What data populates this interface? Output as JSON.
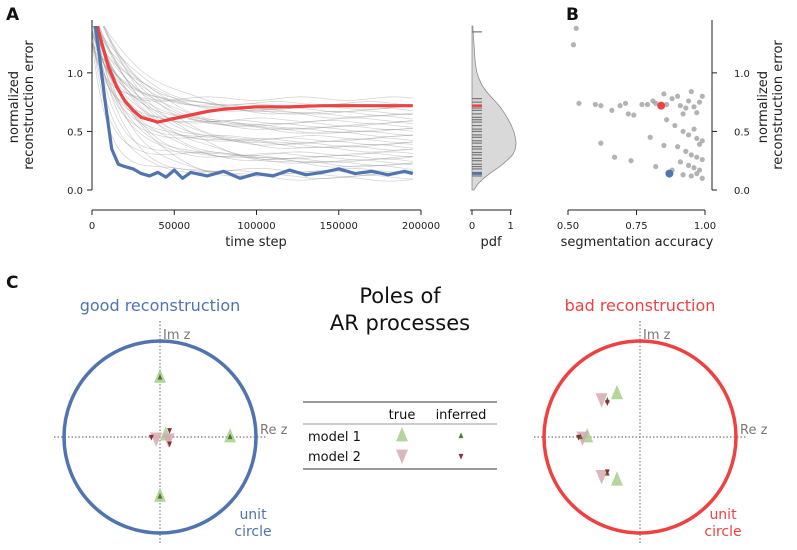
{
  "panels": {
    "a": "A",
    "b": "B",
    "c": "C"
  },
  "colors": {
    "good": "#4f74b0",
    "bad": "#ef4141",
    "gray": "#9a9a9a",
    "model1": "#a6cf8c",
    "model1_inferred": "#4f7a2a",
    "model2": "#d7a8b2",
    "model2_inferred": "#8a2e3a"
  },
  "chart_data": [
    {
      "type": "line",
      "panel": "A",
      "xlabel": "time step",
      "ylabel": "normalized\nreconstruction error",
      "xlim": [
        0,
        200000
      ],
      "ylim": [
        0,
        1.4
      ],
      "xticks": [
        "0",
        "50000",
        "100000",
        "150000",
        "200000"
      ],
      "yticks": [
        "0.0",
        "0.5",
        "1.0"
      ],
      "series": [
        {
          "color": "#ef4141",
          "x": [
            0,
            5000,
            10000,
            15000,
            20000,
            25000,
            30000,
            35000,
            40000,
            50000,
            60000,
            70000,
            80000,
            90000,
            100000,
            120000,
            140000,
            160000,
            180000,
            195000
          ],
          "y": [
            1.6,
            1.3,
            1.05,
            0.88,
            0.76,
            0.68,
            0.62,
            0.6,
            0.58,
            0.61,
            0.64,
            0.67,
            0.69,
            0.7,
            0.71,
            0.71,
            0.72,
            0.72,
            0.72,
            0.72
          ]
        },
        {
          "color": "#4f74b0",
          "x": [
            0,
            4000,
            8000,
            12000,
            16000,
            20000,
            25000,
            30000,
            35000,
            40000,
            45000,
            50000,
            55000,
            60000,
            70000,
            80000,
            90000,
            100000,
            110000,
            120000,
            130000,
            140000,
            150000,
            160000,
            170000,
            180000,
            190000,
            195000
          ],
          "y": [
            1.6,
            1.2,
            0.75,
            0.35,
            0.22,
            0.2,
            0.18,
            0.14,
            0.12,
            0.15,
            0.11,
            0.17,
            0.1,
            0.15,
            0.12,
            0.16,
            0.1,
            0.14,
            0.12,
            0.17,
            0.13,
            0.15,
            0.18,
            0.14,
            0.16,
            0.13,
            0.16,
            0.14
          ]
        }
      ],
      "background_series": {
        "color": "#9a9a9a",
        "final_values": [
          0.78,
          0.74,
          0.72,
          0.7,
          0.68,
          0.66,
          0.65,
          0.63,
          0.61,
          0.6,
          0.58,
          0.56,
          0.55,
          0.53,
          0.51,
          0.5,
          0.48,
          0.46,
          0.45,
          0.43,
          0.42,
          0.4,
          0.38,
          0.37,
          0.35,
          0.33,
          0.31,
          0.3,
          0.28,
          0.27,
          0.25,
          0.24,
          0.22,
          0.2,
          0.18,
          0.17,
          0.15,
          0.13,
          0.11,
          0.09
        ]
      }
    },
    {
      "type": "area",
      "panel": "A",
      "xlabel": "pdf",
      "xticks": [
        "0",
        "1"
      ],
      "xlim": [
        0,
        1.5
      ],
      "ylim": [
        0,
        1.4
      ],
      "density_y": [
        0.0,
        0.05,
        0.1,
        0.15,
        0.2,
        0.25,
        0.3,
        0.35,
        0.4,
        0.45,
        0.5,
        0.55,
        0.6,
        0.65,
        0.7,
        0.75,
        0.8,
        0.85,
        0.9,
        0.95,
        1.0,
        1.05,
        1.1,
        1.15,
        1.2,
        1.3,
        1.4
      ],
      "density_x": [
        0.05,
        0.15,
        0.3,
        0.5,
        0.72,
        0.9,
        1.05,
        1.12,
        1.14,
        1.12,
        1.08,
        1.02,
        0.94,
        0.85,
        0.75,
        0.62,
        0.48,
        0.35,
        0.25,
        0.18,
        0.13,
        0.1,
        0.08,
        0.07,
        0.06,
        0.04,
        0.02
      ],
      "rug": [
        0.12,
        0.15,
        0.18,
        0.2,
        0.22,
        0.25,
        0.27,
        0.3,
        0.32,
        0.35,
        0.37,
        0.4,
        0.42,
        0.45,
        0.47,
        0.5,
        0.52,
        0.55,
        0.58,
        0.6,
        0.62,
        0.65,
        0.68,
        0.7,
        0.72,
        0.75,
        0.78,
        1.35
      ],
      "rug_good": 0.14,
      "rug_bad": 0.72
    },
    {
      "type": "scatter",
      "panel": "B",
      "xlabel": "segmentation accuracy",
      "ylabel": "normalized\nreconstruction error",
      "xlim": [
        0.5,
        1.0
      ],
      "ylim": [
        0,
        1.4
      ],
      "xticks": [
        "0.50",
        "0.75",
        "1.00"
      ],
      "yticks": [
        "0.0",
        "0.5",
        "1.0"
      ],
      "points": [
        [
          0.52,
          1.24
        ],
        [
          0.53,
          1.38
        ],
        [
          0.54,
          0.74
        ],
        [
          0.6,
          0.73
        ],
        [
          0.62,
          0.72
        ],
        [
          0.66,
          0.68
        ],
        [
          0.69,
          0.72
        ],
        [
          0.71,
          0.74
        ],
        [
          0.72,
          0.65
        ],
        [
          0.74,
          0.64
        ],
        [
          0.77,
          0.73
        ],
        [
          0.79,
          0.73
        ],
        [
          0.81,
          0.76
        ],
        [
          0.82,
          0.74
        ],
        [
          0.85,
          0.82
        ],
        [
          0.86,
          0.73
        ],
        [
          0.88,
          0.78
        ],
        [
          0.9,
          0.8
        ],
        [
          0.91,
          0.72
        ],
        [
          0.92,
          0.65
        ],
        [
          0.93,
          0.7
        ],
        [
          0.94,
          0.76
        ],
        [
          0.95,
          0.84
        ],
        [
          0.96,
          0.71
        ],
        [
          0.97,
          0.66
        ],
        [
          0.98,
          0.75
        ],
        [
          0.99,
          0.8
        ],
        [
          0.86,
          0.6
        ],
        [
          0.89,
          0.55
        ],
        [
          0.92,
          0.5
        ],
        [
          0.94,
          0.47
        ],
        [
          0.96,
          0.52
        ],
        [
          0.97,
          0.44
        ],
        [
          0.98,
          0.39
        ],
        [
          0.99,
          0.42
        ],
        [
          0.9,
          0.37
        ],
        [
          0.93,
          0.33
        ],
        [
          0.95,
          0.3
        ],
        [
          0.97,
          0.28
        ],
        [
          0.99,
          0.26
        ],
        [
          0.91,
          0.24
        ],
        [
          0.94,
          0.21
        ],
        [
          0.96,
          0.19
        ],
        [
          0.98,
          0.17
        ],
        [
          0.62,
          0.4
        ],
        [
          0.67,
          0.28
        ],
        [
          0.73,
          0.25
        ],
        [
          0.82,
          0.2
        ],
        [
          0.88,
          0.17
        ],
        [
          0.92,
          0.13
        ],
        [
          0.95,
          0.12
        ],
        [
          0.97,
          0.14
        ],
        [
          0.99,
          0.1
        ],
        [
          0.8,
          0.45
        ],
        [
          0.85,
          0.38
        ]
      ],
      "highlight_bad": [
        0.84,
        0.72
      ],
      "highlight_good": [
        0.87,
        0.14
      ]
    },
    {
      "type": "scatter",
      "panel": "C",
      "title": "good reconstruction",
      "xlabel": "Re z",
      "ylabel": "Im z",
      "circle_label": [
        "unit",
        "circle"
      ],
      "xlim": [
        -1.1,
        1.1
      ],
      "ylim": [
        -1.1,
        1.1
      ],
      "true_model1": [
        [
          0.0,
          0.62
        ],
        [
          0.73,
          0.0
        ],
        [
          0.0,
          -0.62
        ],
        [
          0.06,
          0.02
        ]
      ],
      "true_model2": [
        [
          -0.04,
          -0.01
        ],
        [
          0.09,
          -0.02
        ]
      ],
      "inferred_model1": [
        [
          0.0,
          0.62
        ],
        [
          0.73,
          0.0
        ],
        [
          0.0,
          -0.62
        ]
      ],
      "inferred_model2": [
        [
          -0.09,
          0.0
        ],
        [
          0.1,
          0.07
        ],
        [
          0.1,
          -0.07
        ]
      ]
    },
    {
      "type": "scatter",
      "panel": "C",
      "title": "bad reconstruction",
      "xlabel": "Re z",
      "ylabel": "Im z",
      "circle_label": [
        "unit",
        "circle"
      ],
      "xlim": [
        -1.1,
        1.1
      ],
      "ylim": [
        -1.1,
        1.1
      ],
      "true_model1": [
        [
          -0.24,
          0.45
        ],
        [
          -0.24,
          -0.45
        ],
        [
          -0.55,
          0.0
        ]
      ],
      "true_model2": [
        [
          -0.4,
          0.4
        ],
        [
          -0.4,
          -0.4
        ],
        [
          -0.6,
          0.0
        ]
      ],
      "inferred_model1": [
        [
          -0.34,
          0.38
        ],
        [
          -0.34,
          -0.38
        ],
        [
          -0.62,
          0.0
        ]
      ],
      "inferred_model2": [
        [
          -0.34,
          0.36
        ],
        [
          -0.34,
          -0.36
        ],
        [
          -0.64,
          0.0
        ]
      ]
    }
  ],
  "center_title": [
    "Poles of",
    "AR processes"
  ],
  "legend": {
    "col_true": "true",
    "col_inferred": "inferred",
    "row1": "model 1",
    "row2": "model 2"
  }
}
